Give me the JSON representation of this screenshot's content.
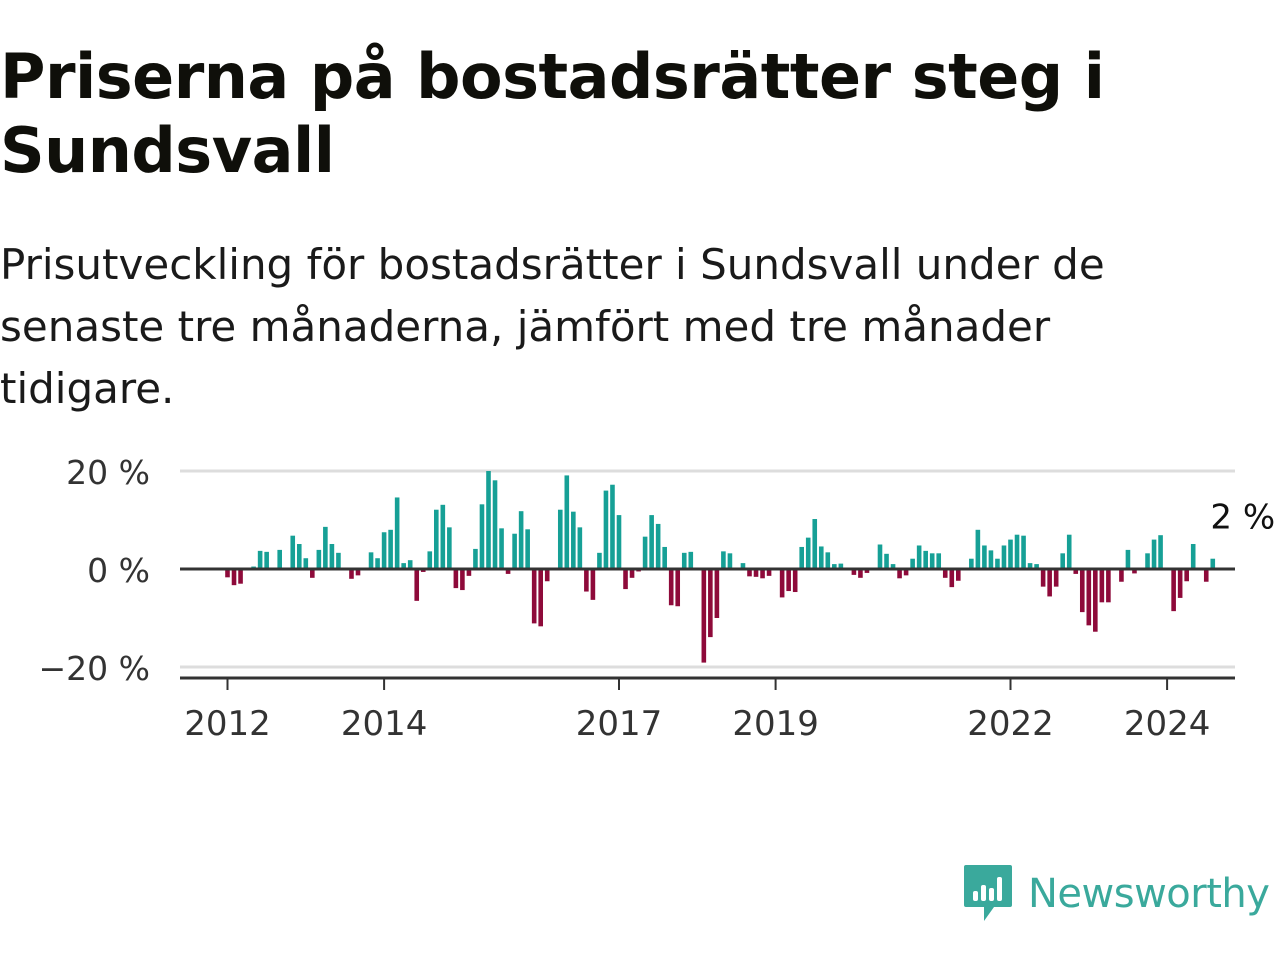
{
  "title": "Priserna på bostadsrätter steg i Sundsvall",
  "subtitle": "Prisutveckling för bostadsrätter i Sundsvall under de senaste tre månaderna, jämfört med tre månader tidigare.",
  "brand": {
    "name": "Newsworthy",
    "icon": "newsworthy-logo-icon",
    "color": "#3aa99c"
  },
  "colors": {
    "positive": "#16a096",
    "negative": "#8e0a3a",
    "grid": "#dddddd",
    "axis": "#333333"
  },
  "chart_data": {
    "type": "bar",
    "title": "",
    "xlabel": "",
    "ylabel": "",
    "y_unit": "%",
    "ylim": [
      -22,
      22
    ],
    "y_ticks": [
      {
        "value": 20,
        "label": "20 %"
      },
      {
        "value": 0,
        "label": "0 %"
      },
      {
        "value": -20,
        "label": "−20 %"
      }
    ],
    "x_ticks": [
      {
        "value": "2012-01",
        "label": "2012"
      },
      {
        "value": "2014-01",
        "label": "2014"
      },
      {
        "value": "2017-01",
        "label": "2017"
      },
      {
        "value": "2019-01",
        "label": "2019"
      },
      {
        "value": "2022-01",
        "label": "2022"
      },
      {
        "value": "2024-01",
        "label": "2024"
      }
    ],
    "last_label": "2 %",
    "grid": true,
    "legend": "none",
    "series": [
      {
        "start_month": "2012-01",
        "values": [
          -1.7,
          -3.3,
          -3.0,
          0,
          0.5,
          3.7,
          3.5,
          0,
          3.9,
          0,
          6.8,
          5.1,
          2.2,
          -1.8,
          3.9,
          8.6,
          5.1,
          3.3,
          0,
          -2.0,
          -1.3,
          0,
          3.4,
          2.2,
          7.5,
          8.0,
          14.6,
          1.2,
          1.8,
          -6.5,
          -0.6,
          3.6,
          12.1,
          13.1,
          8.5,
          -3.9,
          -4.3,
          -1.4,
          4.1,
          13.2,
          20.0,
          18.1,
          8.3,
          -1.0,
          7.2,
          11.8,
          8.1,
          -11.1,
          -11.7,
          -2.5,
          0,
          12.1,
          19.1,
          11.7,
          8.5,
          -4.6,
          -6.3,
          3.3,
          16.0,
          17.2,
          11.0,
          -4.1,
          -1.8,
          -0.5,
          6.6,
          11.0,
          9.2,
          4.5,
          -7.4,
          -7.6,
          3.3,
          3.5,
          0,
          -19.1,
          -13.9,
          -10.0,
          3.6,
          3.2,
          0,
          1.2,
          -1.5,
          -1.6,
          -1.9,
          -1.4,
          0,
          -5.8,
          -4.5,
          -4.7,
          4.5,
          6.4,
          10.2,
          4.6,
          3.4,
          1.0,
          1.1,
          0,
          -1.2,
          -1.8,
          -0.8,
          0,
          5.0,
          3.1,
          1.0,
          -1.9,
          -1.3,
          2.1,
          4.8,
          3.7,
          3.2,
          3.2,
          -1.8,
          -3.7,
          -2.4,
          0,
          2.1,
          8.0,
          4.8,
          3.8,
          2.1,
          4.8,
          6.0,
          7.0,
          6.8,
          1.2,
          1.0,
          -3.6,
          -5.6,
          -3.6,
          3.2,
          7.0,
          -1.0,
          -8.8,
          -11.5,
          -12.8,
          -6.8,
          -6.8,
          0,
          -2.6,
          3.9,
          -0.9,
          0,
          3.2,
          6.0,
          6.9,
          0,
          -8.6,
          -5.9,
          -2.5,
          5.1,
          0,
          -2.6,
          2.1
        ]
      }
    ]
  }
}
